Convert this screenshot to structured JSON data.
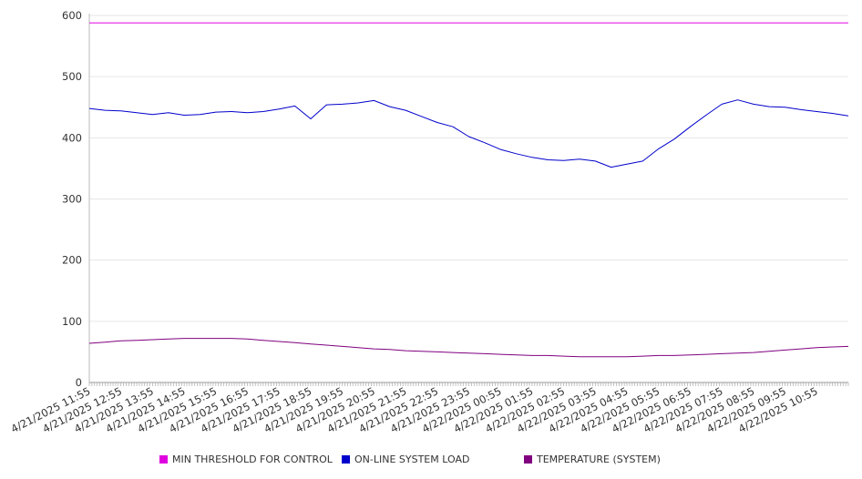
{
  "chart_data": {
    "type": "line",
    "title": "",
    "xlabel": "",
    "ylabel": "",
    "ylim": [
      0,
      600
    ],
    "yticks": [
      0,
      100,
      200,
      300,
      400,
      500,
      600
    ],
    "grid": true,
    "legend_position": "bottom",
    "x_tick_labels": [
      "4/21/2025 11:55",
      "4/21/2025 12:55",
      "4/21/2025 13:55",
      "4/21/2025 14:55",
      "4/21/2025 15:55",
      "4/21/2025 16:55",
      "4/21/2025 17:55",
      "4/21/2025 18:55",
      "4/21/2025 19:55",
      "4/21/2025 20:55",
      "4/21/2025 21:55",
      "4/21/2025 22:55",
      "4/21/2025 23:55",
      "4/22/2025 00:55",
      "4/22/2025 01:55",
      "4/22/2025 02:55",
      "4/22/2025 03:55",
      "4/22/2025 04:55",
      "4/22/2025 05:55",
      "4/22/2025 06:55",
      "4/22/2025 07:55",
      "4/22/2025 08:55",
      "4/22/2025 09:55",
      "4/22/2025 10:55"
    ],
    "x_hours": [
      0,
      0.5,
      1,
      1.5,
      2,
      2.5,
      3,
      3.5,
      4,
      4.5,
      5,
      5.5,
      6,
      6.5,
      7,
      7.5,
      8,
      8.5,
      9,
      9.5,
      10,
      10.5,
      11,
      11.5,
      12,
      12.5,
      13,
      13.5,
      14,
      14.5,
      15,
      15.5,
      16,
      16.5,
      17,
      17.5,
      18,
      18.5,
      19,
      19.5,
      20,
      20.5,
      21,
      21.5,
      22,
      22.5,
      23,
      23.5,
      24
    ],
    "series": [
      {
        "name": "MIN THRESHOLD FOR CONTROL",
        "color": "#e000e0",
        "values": [
          588,
          588,
          588,
          588,
          588,
          588,
          588,
          588,
          588,
          588,
          588,
          588,
          588,
          588,
          588,
          588,
          588,
          588,
          588,
          588,
          588,
          588,
          588,
          588,
          588,
          588,
          588,
          588,
          588,
          588,
          588,
          588,
          588,
          588,
          588,
          588,
          588,
          588,
          588,
          588,
          588,
          588,
          588,
          588,
          588,
          588,
          588,
          588,
          588
        ]
      },
      {
        "name": "ON-LINE SYSTEM LOAD",
        "color": "#0000cc",
        "values": [
          448,
          445,
          444,
          441,
          438,
          441,
          437,
          438,
          442,
          443,
          441,
          443,
          447,
          452,
          431,
          454,
          455,
          457,
          461,
          451,
          445,
          435,
          425,
          418,
          402,
          392,
          381,
          374,
          368,
          364,
          363,
          365,
          362,
          352,
          357,
          362,
          382,
          398,
          418,
          437,
          455,
          462,
          455,
          451,
          450,
          446,
          443,
          440,
          436
        ]
      },
      {
        "name": "TEMPERATURE (SYSTEM)",
        "color": "#800080",
        "values": [
          64,
          66,
          68,
          69,
          70,
          71,
          72,
          72,
          72,
          72,
          71,
          69,
          67,
          65,
          63,
          61,
          59,
          57,
          55,
          54,
          52,
          51,
          50,
          49,
          48,
          47,
          46,
          45,
          44,
          44,
          43,
          42,
          42,
          42,
          42,
          43,
          44,
          44,
          45,
          46,
          47,
          48,
          49,
          51,
          53,
          55,
          57,
          58,
          59
        ]
      }
    ]
  }
}
